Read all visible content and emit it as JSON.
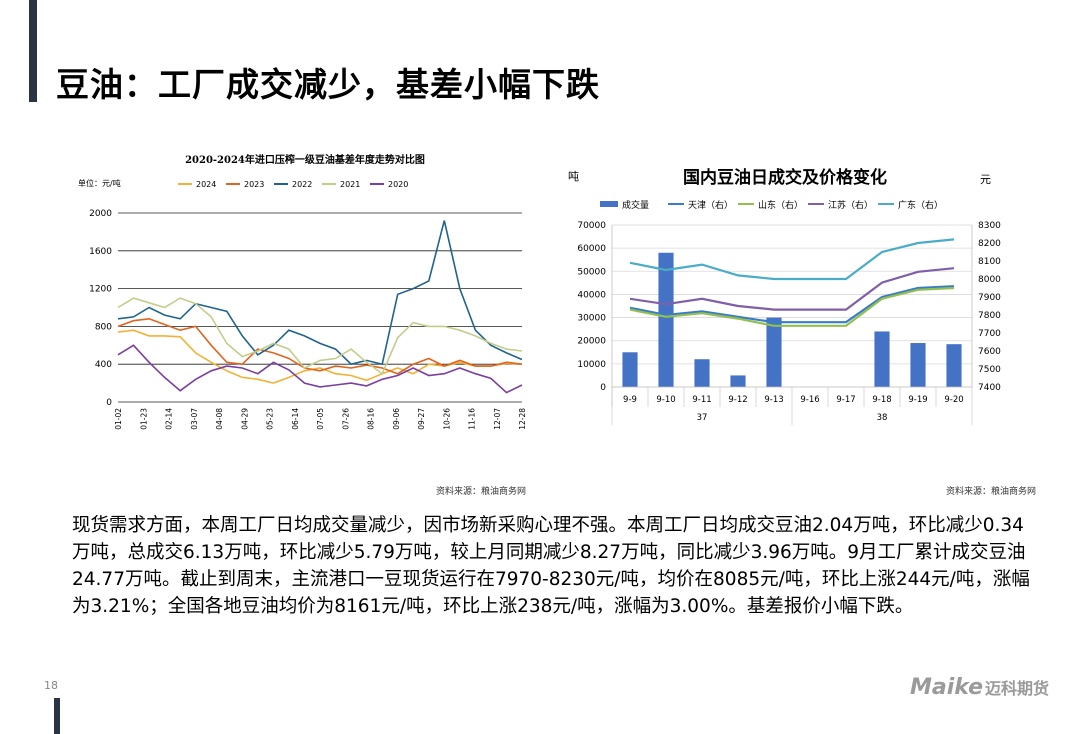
{
  "page": {
    "title": "豆油：工厂成交减少，基差小幅下跌",
    "page_number": "18",
    "logo_text": "Maike",
    "logo_cn": "迈科期货",
    "body": "现货需求方面，本周工厂日均成交量减少，因市场新采购心理不强。本周工厂日均成交豆油2.04万吨，环比减少0.34万吨，总成交6.13万吨，环比减少5.79万吨，较上月同期减少8.27万吨，同比减少3.96万吨。9月工厂累计成交豆油24.77万吨。截止到周末，主流港口一豆现货运行在7970-8230元/吨，均价在8085元/吨，环比上涨244元/吨，涨幅为3.21%；全国各地豆油均价为8161元/吨，环比上涨238元/吨，涨幅为3.00%。基差报价小幅下跌。",
    "colors": {
      "accent": "#2b3346"
    }
  },
  "chart_data": [
    {
      "type": "line",
      "title": "2020-2024年进口压榨一级豆油基差年度走势对比图",
      "unit_label": "单位：元/吨",
      "source": "资料来源：粮油商务网",
      "ylim": [
        0,
        2000
      ],
      "y_ticks": [
        0,
        400,
        800,
        1200,
        1600,
        2000
      ],
      "grid": "horizontal",
      "legend_position": "top",
      "x_ticks": [
        "01-02",
        "01-23",
        "02-14",
        "03-07",
        "04-08",
        "04-29",
        "05-23",
        "06-14",
        "07-05",
        "07-26",
        "08-16",
        "09-06",
        "09-27",
        "10-26",
        "11-16",
        "12-07",
        "12-28"
      ],
      "series": [
        {
          "name": "2024",
          "color": "#f2b134",
          "values": [
            740,
            760,
            700,
            700,
            690,
            520,
            420,
            330,
            260,
            240,
            200,
            260,
            330,
            360,
            300,
            280,
            230,
            300,
            360,
            300,
            400,
            380,
            420,
            380,
            380,
            410,
            400
          ]
        },
        {
          "name": "2023",
          "color": "#e0641e",
          "values": [
            800,
            860,
            880,
            820,
            760,
            800,
            600,
            420,
            400,
            560,
            520,
            460,
            360,
            330,
            380,
            360,
            390,
            360,
            300,
            400,
            460,
            380,
            440,
            380,
            380,
            420,
            400
          ]
        },
        {
          "name": "2022",
          "color": "#1f6391",
          "values": [
            880,
            900,
            1000,
            920,
            880,
            1040,
            1000,
            960,
            700,
            500,
            600,
            760,
            700,
            620,
            560,
            400,
            440,
            400,
            1140,
            1200,
            1280,
            1920,
            1200,
            760,
            600,
            520,
            450
          ]
        },
        {
          "name": "2021",
          "color": "#c4cc8a",
          "values": [
            1000,
            1100,
            1050,
            1000,
            1100,
            1040,
            900,
            620,
            480,
            540,
            620,
            560,
            360,
            440,
            460,
            560,
            420,
            300,
            680,
            840,
            800,
            800,
            760,
            700,
            620,
            560,
            540
          ]
        },
        {
          "name": "2020",
          "color": "#7a3fa0",
          "values": [
            500,
            600,
            420,
            260,
            120,
            240,
            330,
            380,
            360,
            300,
            420,
            340,
            200,
            160,
            180,
            200,
            170,
            240,
            280,
            360,
            280,
            300,
            360,
            300,
            250,
            100,
            180
          ]
        }
      ]
    },
    {
      "type": "bar",
      "title": "国内豆油日成交及价格变化",
      "left_unit": "吨",
      "right_unit": "元",
      "source": "资料来源：粮油商务网",
      "legend_position": "top",
      "grid": "horizontal",
      "categories": [
        "9-9",
        "9-10",
        "9-11",
        "9-12",
        "9-13",
        "9-16",
        "9-17",
        "9-18",
        "9-19",
        "9-20"
      ],
      "week_labels": [
        "37",
        "38"
      ],
      "ylim": [
        0,
        70000
      ],
      "y_ticks": [
        0,
        10000,
        20000,
        30000,
        40000,
        50000,
        60000,
        70000
      ],
      "y2lim": [
        7400,
        8300
      ],
      "y2_ticks": [
        7400,
        7500,
        7600,
        7700,
        7800,
        7900,
        8000,
        8100,
        8200,
        8300
      ],
      "bars": {
        "name": "成交量",
        "color": "#4472c4",
        "values": [
          15000,
          58000,
          12000,
          5000,
          30000,
          0,
          0,
          24000,
          19000,
          18500
        ]
      },
      "series": [
        {
          "name": "天津（右）",
          "color": "#3a7bc8",
          "values": [
            7840,
            7800,
            7820,
            7790,
            7760,
            7760,
            7760,
            7900,
            7950,
            7960
          ]
        },
        {
          "name": "山东（右）",
          "color": "#92c050",
          "values": [
            7830,
            7790,
            7810,
            7780,
            7740,
            7740,
            7740,
            7890,
            7940,
            7950
          ]
        },
        {
          "name": "江苏（右）",
          "color": "#7f5fa8",
          "values": [
            7890,
            7860,
            7890,
            7850,
            7830,
            7830,
            7830,
            7980,
            8040,
            8060
          ]
        },
        {
          "name": "广东（右）",
          "color": "#4bacc6",
          "values": [
            8090,
            8050,
            8080,
            8020,
            8000,
            8000,
            8000,
            8150,
            8200,
            8220
          ]
        }
      ]
    }
  ]
}
